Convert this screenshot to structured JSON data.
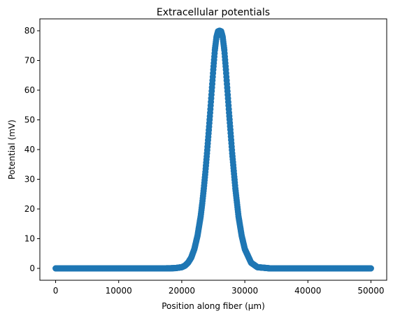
{
  "chart_data": {
    "type": "scatter",
    "title": "Extracellular potentials",
    "xlabel": "Position along fiber (µm)",
    "ylabel": "Potential (mV)",
    "xlim": [
      -2500,
      52500
    ],
    "ylim": [
      -4,
      84
    ],
    "x_ticks": [
      {
        "value": 0,
        "label": "0"
      },
      {
        "value": 10000,
        "label": "10000"
      },
      {
        "value": 20000,
        "label": "20000"
      },
      {
        "value": 30000,
        "label": "30000"
      },
      {
        "value": 40000,
        "label": "40000"
      },
      {
        "value": 50000,
        "label": "50000"
      }
    ],
    "y_ticks": [
      {
        "value": 0,
        "label": "0"
      },
      {
        "value": 10,
        "label": "10"
      },
      {
        "value": 20,
        "label": "20"
      },
      {
        "value": 30,
        "label": "30"
      },
      {
        "value": 40,
        "label": "40"
      },
      {
        "value": 50,
        "label": "50"
      },
      {
        "value": 60,
        "label": "60"
      },
      {
        "value": 70,
        "label": "70"
      },
      {
        "value": 80,
        "label": "80"
      }
    ],
    "grid": false,
    "marker_color": "#1f77b4",
    "series": [
      {
        "x": [
          0,
          2000,
          4000,
          6000,
          8000,
          10000,
          12000,
          14000,
          16000,
          18000,
          19000,
          20000,
          20500,
          21000,
          21500,
          22000,
          22500,
          23000,
          23250,
          23500,
          23750,
          24000,
          24250,
          24500,
          24750,
          25000,
          25250,
          25500,
          25750,
          26000,
          26250,
          26500,
          26750,
          27000,
          27500,
          28000,
          28500,
          29000,
          29500,
          30000,
          31000,
          32000,
          34000,
          36000,
          38000,
          40000,
          42000,
          44000,
          46000,
          48000,
          50000
        ],
        "y": [
          0,
          0,
          0,
          0,
          0,
          0,
          0,
          0,
          0,
          0.02,
          0.1,
          0.4,
          0.9,
          1.9,
          3.6,
          6.5,
          11.0,
          17.5,
          21.9,
          26.9,
          32.5,
          38.7,
          45.4,
          52.4,
          59.7,
          66.9,
          73.5,
          77.8,
          79.8,
          80.0,
          79.8,
          77.8,
          73.5,
          66.9,
          52.4,
          38.7,
          26.9,
          17.5,
          11.0,
          6.5,
          1.9,
          0.4,
          0.01,
          0,
          0,
          0,
          0,
          0,
          0,
          0,
          0
        ]
      }
    ]
  }
}
